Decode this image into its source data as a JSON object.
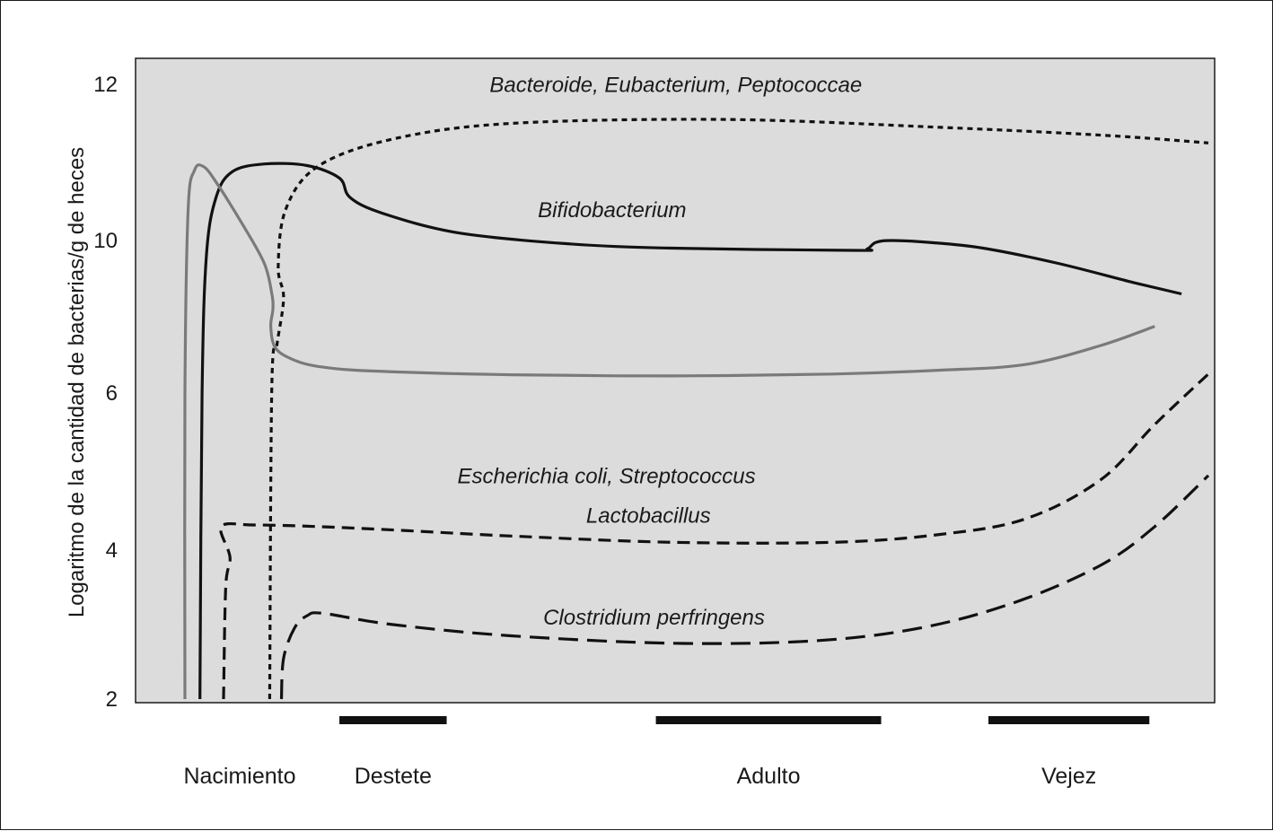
{
  "chart_data": {
    "type": "line",
    "title": "",
    "xlabel": "",
    "ylabel": "Logaritmo de la cantidad de bacterias/g de heces",
    "ylim": [
      2,
      12.5
    ],
    "yticks": [
      2,
      4,
      6,
      10,
      12
    ],
    "yscale_note": "",
    "grid": false,
    "background": "#dcdcdc",
    "stages": [
      {
        "name": "Nacimiento",
        "bar": null
      },
      {
        "name": "Destete",
        "bar": [
          1.9,
          2.9
        ]
      },
      {
        "name": "Adulto",
        "bar": [
          4.85,
          6.95
        ]
      },
      {
        "name": "Vejez",
        "bar": [
          7.95,
          9.45
        ]
      }
    ],
    "xlim": [
      0,
      10
    ],
    "series": [
      {
        "name": "Bacteroide, Eubacterium, Peptococcae",
        "color": "#111111",
        "dash": "6 5",
        "label_at": [
          3.3,
          11.9
        ],
        "points": [
          [
            1.25,
            2
          ],
          [
            1.27,
            6.2
          ],
          [
            1.32,
            7.3
          ],
          [
            1.38,
            8.5
          ],
          [
            1.33,
            9.3
          ],
          [
            1.4,
            10.4
          ],
          [
            1.7,
            10.95
          ],
          [
            2.4,
            11.3
          ],
          [
            3.5,
            11.5
          ],
          [
            5.5,
            11.55
          ],
          [
            7.5,
            11.45
          ],
          [
            9.0,
            11.35
          ],
          [
            10.0,
            11.25
          ]
        ]
      },
      {
        "name": "Bifidobacterium",
        "color": "#111111",
        "dash": "",
        "label_at": [
          3.75,
          10.3
        ],
        "points": [
          [
            0.6,
            2
          ],
          [
            0.62,
            6.0
          ],
          [
            0.66,
            9.6
          ],
          [
            0.75,
            10.55
          ],
          [
            0.9,
            10.88
          ],
          [
            1.2,
            10.98
          ],
          [
            1.6,
            10.96
          ],
          [
            1.9,
            10.8
          ],
          [
            2.0,
            10.55
          ],
          [
            2.3,
            10.35
          ],
          [
            3.0,
            10.1
          ],
          [
            4.0,
            9.92
          ],
          [
            5.0,
            9.8
          ],
          [
            6.7,
            9.74
          ],
          [
            6.82,
            9.78
          ],
          [
            6.9,
            9.95
          ],
          [
            7.05,
            10.0
          ],
          [
            7.4,
            9.95
          ],
          [
            7.9,
            9.8
          ],
          [
            8.6,
            9.4
          ],
          [
            9.3,
            8.9
          ],
          [
            9.75,
            8.6
          ]
        ]
      },
      {
        "name": "Escherichia coli, Streptococcus",
        "color": "#7a7a7a",
        "dash": "",
        "label_at": [
          3.0,
          4.85
        ],
        "points": [
          [
            0.46,
            2
          ],
          [
            0.46,
            6.0
          ],
          [
            0.49,
            10.4
          ],
          [
            0.55,
            10.9
          ],
          [
            0.63,
            10.95
          ],
          [
            0.75,
            10.75
          ],
          [
            1.0,
            10.2
          ],
          [
            1.2,
            9.4
          ],
          [
            1.27,
            8.6
          ],
          [
            1.28,
            8.2
          ],
          [
            1.26,
            7.75
          ],
          [
            1.3,
            7.2
          ],
          [
            1.45,
            6.9
          ],
          [
            1.7,
            6.7
          ],
          [
            2.2,
            6.58
          ],
          [
            3.5,
            6.48
          ],
          [
            5.0,
            6.45
          ],
          [
            6.5,
            6.5
          ],
          [
            7.5,
            6.6
          ],
          [
            8.3,
            6.75
          ],
          [
            9.0,
            7.25
          ],
          [
            9.5,
            7.75
          ]
        ]
      },
      {
        "name": "Lactobacillus",
        "color": "#111111",
        "dash": "14 8",
        "label_at": [
          4.2,
          4.35
        ],
        "points": [
          [
            0.82,
            2
          ],
          [
            0.84,
            3.5
          ],
          [
            0.88,
            3.9
          ],
          [
            0.8,
            4.3
          ],
          [
            1.1,
            4.32
          ],
          [
            1.7,
            4.3
          ],
          [
            2.5,
            4.25
          ],
          [
            3.5,
            4.18
          ],
          [
            5.0,
            4.1
          ],
          [
            6.5,
            4.1
          ],
          [
            7.5,
            4.2
          ],
          [
            8.3,
            4.4
          ],
          [
            9.0,
            4.9
          ],
          [
            9.5,
            5.6
          ],
          [
            10.0,
            6.5
          ]
        ]
      },
      {
        "name": "Clostridium perfringens",
        "color": "#111111",
        "dash": "22 10",
        "label_at": [
          3.8,
          3.0
        ],
        "points": [
          [
            1.36,
            2
          ],
          [
            1.38,
            2.55
          ],
          [
            1.48,
            2.95
          ],
          [
            1.6,
            3.12
          ],
          [
            1.75,
            3.15
          ],
          [
            2.4,
            3.0
          ],
          [
            3.5,
            2.85
          ],
          [
            5.0,
            2.75
          ],
          [
            6.3,
            2.78
          ],
          [
            7.3,
            2.95
          ],
          [
            8.2,
            3.3
          ],
          [
            9.0,
            3.8
          ],
          [
            9.5,
            4.3
          ],
          [
            10.0,
            4.95
          ]
        ]
      }
    ]
  }
}
